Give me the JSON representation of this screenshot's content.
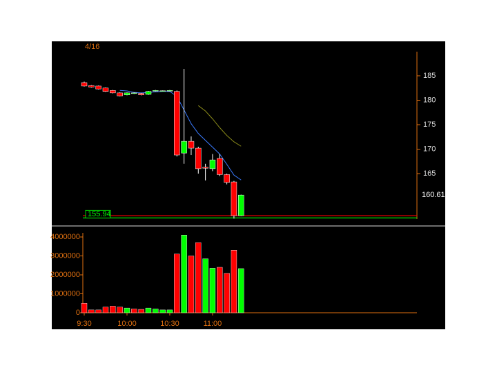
{
  "chart_data": [
    {
      "type": "candlestick",
      "title": "4/16",
      "open": [
        183.6,
        183.0,
        182.9,
        182.5,
        182.0,
        181.5,
        181.1,
        181.4,
        181.4,
        181.2,
        181.9,
        181.85,
        181.9,
        181.8,
        169.2,
        171.6,
        170.2,
        166.3,
        166.0,
        168.1,
        164.8,
        163.3,
        156.4
      ],
      "high": [
        183.8,
        183.1,
        183.0,
        182.6,
        182.1,
        181.6,
        181.6,
        181.6,
        181.5,
        181.9,
        182.1,
        182.0,
        182.1,
        182.0,
        186.4,
        172.6,
        170.5,
        167.0,
        169.0,
        169.0,
        165.0,
        163.5,
        160.7
      ],
      "low": [
        182.8,
        182.6,
        182.2,
        181.7,
        181.4,
        180.8,
        181.0,
        181.3,
        181.0,
        181.1,
        181.8,
        181.8,
        181.8,
        168.5,
        167.0,
        168.8,
        165.0,
        163.6,
        165.5,
        164.5,
        162.8,
        155.8,
        156.3
      ],
      "close": [
        182.9,
        182.7,
        182.3,
        181.8,
        181.5,
        180.9,
        181.5,
        181.5,
        181.1,
        181.8,
        182.0,
        181.95,
        182.0,
        168.8,
        171.6,
        170.2,
        166.0,
        166.1,
        167.8,
        164.8,
        163.2,
        156.4,
        160.61
      ],
      "up_color": "#00ff00",
      "down_color": "#ff0000",
      "series": [
        {
          "color": "#3a7bff",
          "values": [
            null,
            null,
            null,
            null,
            null,
            182.0,
            181.9,
            181.6,
            181.5,
            181.6,
            181.7,
            181.8,
            181.8,
            180.8,
            178.0,
            175.2,
            173.2,
            171.8,
            170.4,
            169.0,
            166.9,
            164.7,
            163.7
          ]
        },
        {
          "color": "#8a8a1a",
          "values": [
            null,
            null,
            null,
            null,
            null,
            null,
            null,
            null,
            null,
            null,
            null,
            null,
            null,
            null,
            null,
            null,
            178.9,
            177.8,
            176.2,
            174.4,
            172.8,
            171.5,
            170.6
          ]
        }
      ],
      "levels": [
        {
          "value": 156.4,
          "color": "#ff0000"
        },
        {
          "value": 155.94,
          "color": "#00ff00"
        }
      ],
      "ylim": [
        155,
        190
      ],
      "yticks": [
        165,
        170,
        175,
        180,
        185
      ]
    },
    {
      "type": "bar",
      "categories": [
        "9:30",
        null,
        null,
        null,
        null,
        null,
        "10:00",
        null,
        null,
        null,
        null,
        null,
        "10:30",
        null,
        null,
        null,
        null,
        null,
        "11:00",
        null,
        null,
        null,
        null
      ],
      "values": [
        500000,
        150000,
        150000,
        300000,
        350000,
        300000,
        250000,
        200000,
        180000,
        250000,
        200000,
        150000,
        150000,
        3100000,
        4100000,
        3000000,
        3700000,
        2850000,
        2350000,
        2400000,
        2080000,
        3300000,
        2330000
      ],
      "colors": [
        "#ff0000",
        "#ff0000",
        "#ff0000",
        "#ff0000",
        "#ff0000",
        "#ff0000",
        "#00ff00",
        "#ff0000",
        "#ff0000",
        "#00ff00",
        "#00ff00",
        "#00ff00",
        "#00ff00",
        "#ff0000",
        "#00ff00",
        "#ff0000",
        "#ff0000",
        "#00ff00",
        "#00ff00",
        "#ff0000",
        "#ff0000",
        "#ff0000",
        "#00ff00"
      ],
      "ylim": [
        0,
        4400000
      ],
      "yticks": [
        0,
        1000000,
        2000000,
        3000000,
        4000000
      ]
    }
  ]
}
